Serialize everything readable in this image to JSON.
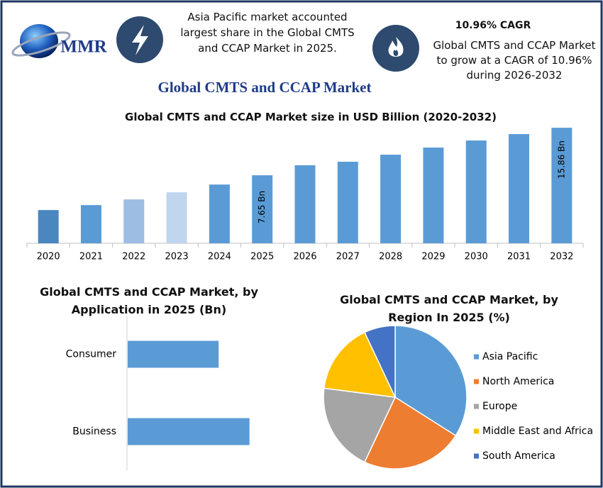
{
  "header": {
    "logo": "MMR",
    "note": "Asia Pacific market accounted largest share in the Global CMTS and CCAP Market in 2025.",
    "cagr_title": "10.96% CAGR",
    "cagr_text": "Global CMTS and CCAP Market to grow at a CAGR of 10.96% during 2026-2032",
    "title": "Global CMTS and CCAP Market"
  },
  "chart_data": [
    {
      "type": "bar",
      "title": "Global CMTS and CCAP Market size in USD Billion (2020-2032)",
      "categories": [
        "2020",
        "2021",
        "2022",
        "2023",
        "2024",
        "2025",
        "2026",
        "2027",
        "2028",
        "2029",
        "2030",
        "2031",
        "2032"
      ],
      "values": [
        1.64,
        2.5,
        3.48,
        4.71,
        6.05,
        7.65,
        9.38,
        9.99,
        11.21,
        12.44,
        13.66,
        14.77,
        15.86
      ],
      "value_labels": [
        null,
        null,
        null,
        null,
        null,
        "7.65 Bn",
        null,
        null,
        null,
        null,
        null,
        null,
        "15.86 Bn"
      ],
      "colors": [
        "#4a86c0",
        "#5b9bd5",
        "#9dbde3",
        "#c0d5ee",
        "#5b9bd5",
        "#5b9bd5",
        "#5b9bd5",
        "#5b9bd5",
        "#5b9bd5",
        "#5b9bd5",
        "#5b9bd5",
        "#5b9bd5",
        "#5b9bd5"
      ],
      "ylim": [
        -4.1,
        17.1
      ]
    },
    {
      "type": "hbar",
      "title": "Global CMTS and CCAP Market, by Application in 2025 (Bn)",
      "categories": [
        "Consumer",
        "Business"
      ],
      "values": [
        3.27,
        4.38
      ],
      "color": "#5b9bd5",
      "xlim": [
        0,
        5
      ]
    },
    {
      "type": "pie",
      "title": "Global CMTS and CCAP Market, by Region In 2025 (%)",
      "series": [
        {
          "name": "Asia Pacific",
          "color": "#5b9bd5",
          "value": 34
        },
        {
          "name": "North America",
          "color": "#ed7d31",
          "value": 23
        },
        {
          "name": "Europe",
          "color": "#a5a5a5",
          "value": 20
        },
        {
          "name": "Middle East and Africa",
          "color": "#ffc000",
          "value": 16
        },
        {
          "name": "South America",
          "color": "#4472c4",
          "value": 7
        }
      ],
      "legend": "right"
    }
  ]
}
